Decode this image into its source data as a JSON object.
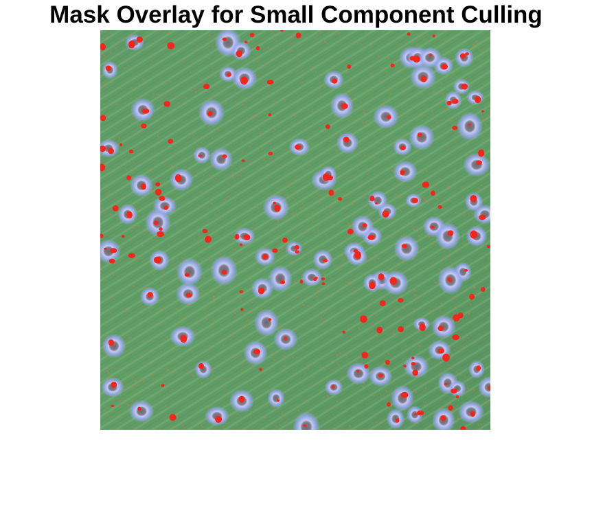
{
  "figure": {
    "title": "Mask Overlay for Small Component Culling"
  },
  "image": {
    "subject": "aerial-field-with-mask-overlay",
    "colors": {
      "field_base": "#5e9a64",
      "field_light": "#74ad74",
      "field_dark": "#4f8a57",
      "row_stripe": "#8fbf88",
      "halo": "#9aa8f5",
      "halo_core": "#c9cdf8",
      "plant_center": "#6c6a6e",
      "mask_red": "#f4261c",
      "mask_orange": "#e8743a"
    }
  }
}
